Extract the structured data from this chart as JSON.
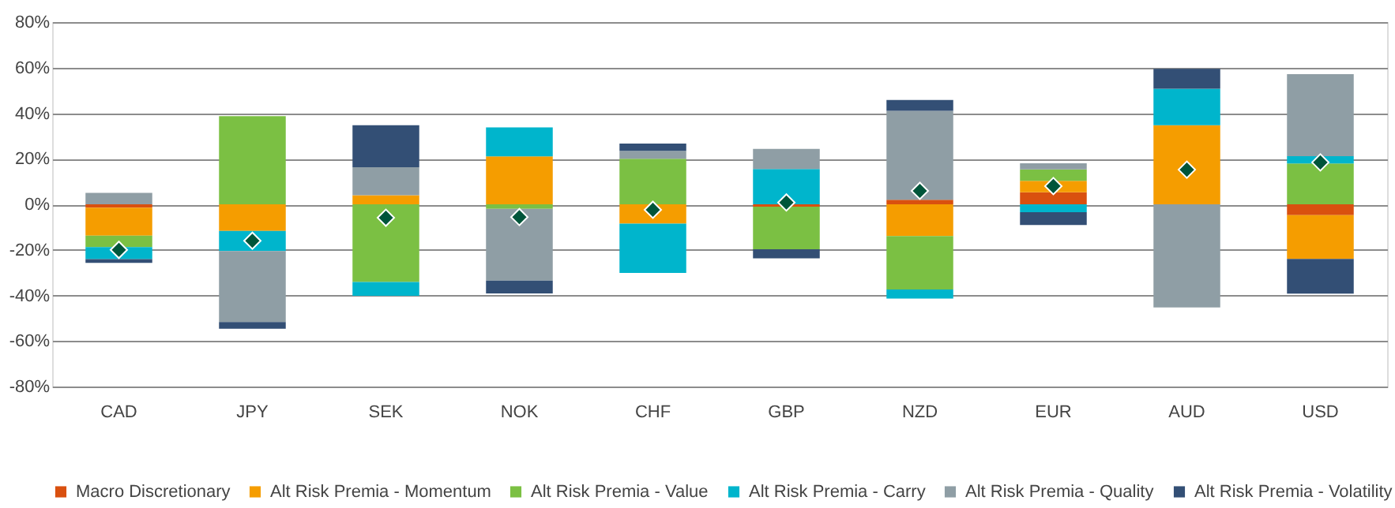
{
  "chart_data": {
    "type": "bar",
    "stacked": true,
    "categories": [
      "CAD",
      "JPY",
      "SEK",
      "NOK",
      "CHF",
      "GBP",
      "NZD",
      "EUR",
      "AUD",
      "USD"
    ],
    "series": [
      {
        "name": "Macro Discretionary",
        "color": "#d9500f",
        "values": [
          -1.5,
          0,
          0,
          0,
          0,
          -1,
          2,
          5.3,
          0,
          -4.8
        ]
      },
      {
        "name": "Alt Risk Premia - Momentum",
        "color": "#f59d00",
        "values": [
          -12.3,
          -11.7,
          4,
          21,
          -8.5,
          0,
          -13.9,
          5,
          34.7,
          -19.2
        ]
      },
      {
        "name": "Alt Risk Premia - Value",
        "color": "#7bc043",
        "values": [
          -5,
          38.7,
          -34.1,
          -2,
          20,
          -18.7,
          -23.5,
          5,
          0,
          17.9
        ]
      },
      {
        "name": "Alt Risk Premia - Carry",
        "color": "#00b5cc",
        "values": [
          -5.3,
          -8.8,
          -6.1,
          12.8,
          -21.6,
          15.5,
          -4,
          -3.5,
          16,
          3.2
        ]
      },
      {
        "name": "Alt Risk Premia - Quality",
        "color": "#8f9ea5",
        "values": [
          5,
          -31.2,
          12.3,
          -31.5,
          3.5,
          8.8,
          39,
          2.7,
          -45.3,
          36
        ]
      },
      {
        "name": "Alt Risk Premia - Volatility",
        "color": "#334f75",
        "values": [
          -1.6,
          -2.9,
          18.4,
          -5.6,
          3.2,
          -4,
          4.8,
          -5.6,
          8.8,
          -15.2
        ]
      },
      {
        "type": "scatter",
        "color": "#00553a",
        "marker": "diamond",
        "x": [
          "CAD",
          "JPY",
          "SEK",
          "NOK",
          "CHF",
          "GBP",
          "NZD",
          "EUR",
          "AUD",
          "USD"
        ],
        "values": [
          -20,
          -16,
          -5.9,
          -5.6,
          -2.4,
          0.8,
          5.9,
          8,
          15.2,
          18.4
        ]
      }
    ],
    "ylim": [
      -80,
      80
    ],
    "yticks": [
      {
        "value": -80,
        "label": "-80%"
      },
      {
        "value": -60,
        "label": "-60%"
      },
      {
        "value": -40,
        "label": "-40%"
      },
      {
        "value": -20,
        "label": "-20%"
      },
      {
        "value": 0,
        "label": "0%"
      },
      {
        "value": 20,
        "label": "20%"
      },
      {
        "value": 40,
        "label": "40%"
      },
      {
        "value": 60,
        "label": "60%"
      },
      {
        "value": 80,
        "label": "80%"
      }
    ],
    "grid": "y",
    "legend": "bottom"
  }
}
